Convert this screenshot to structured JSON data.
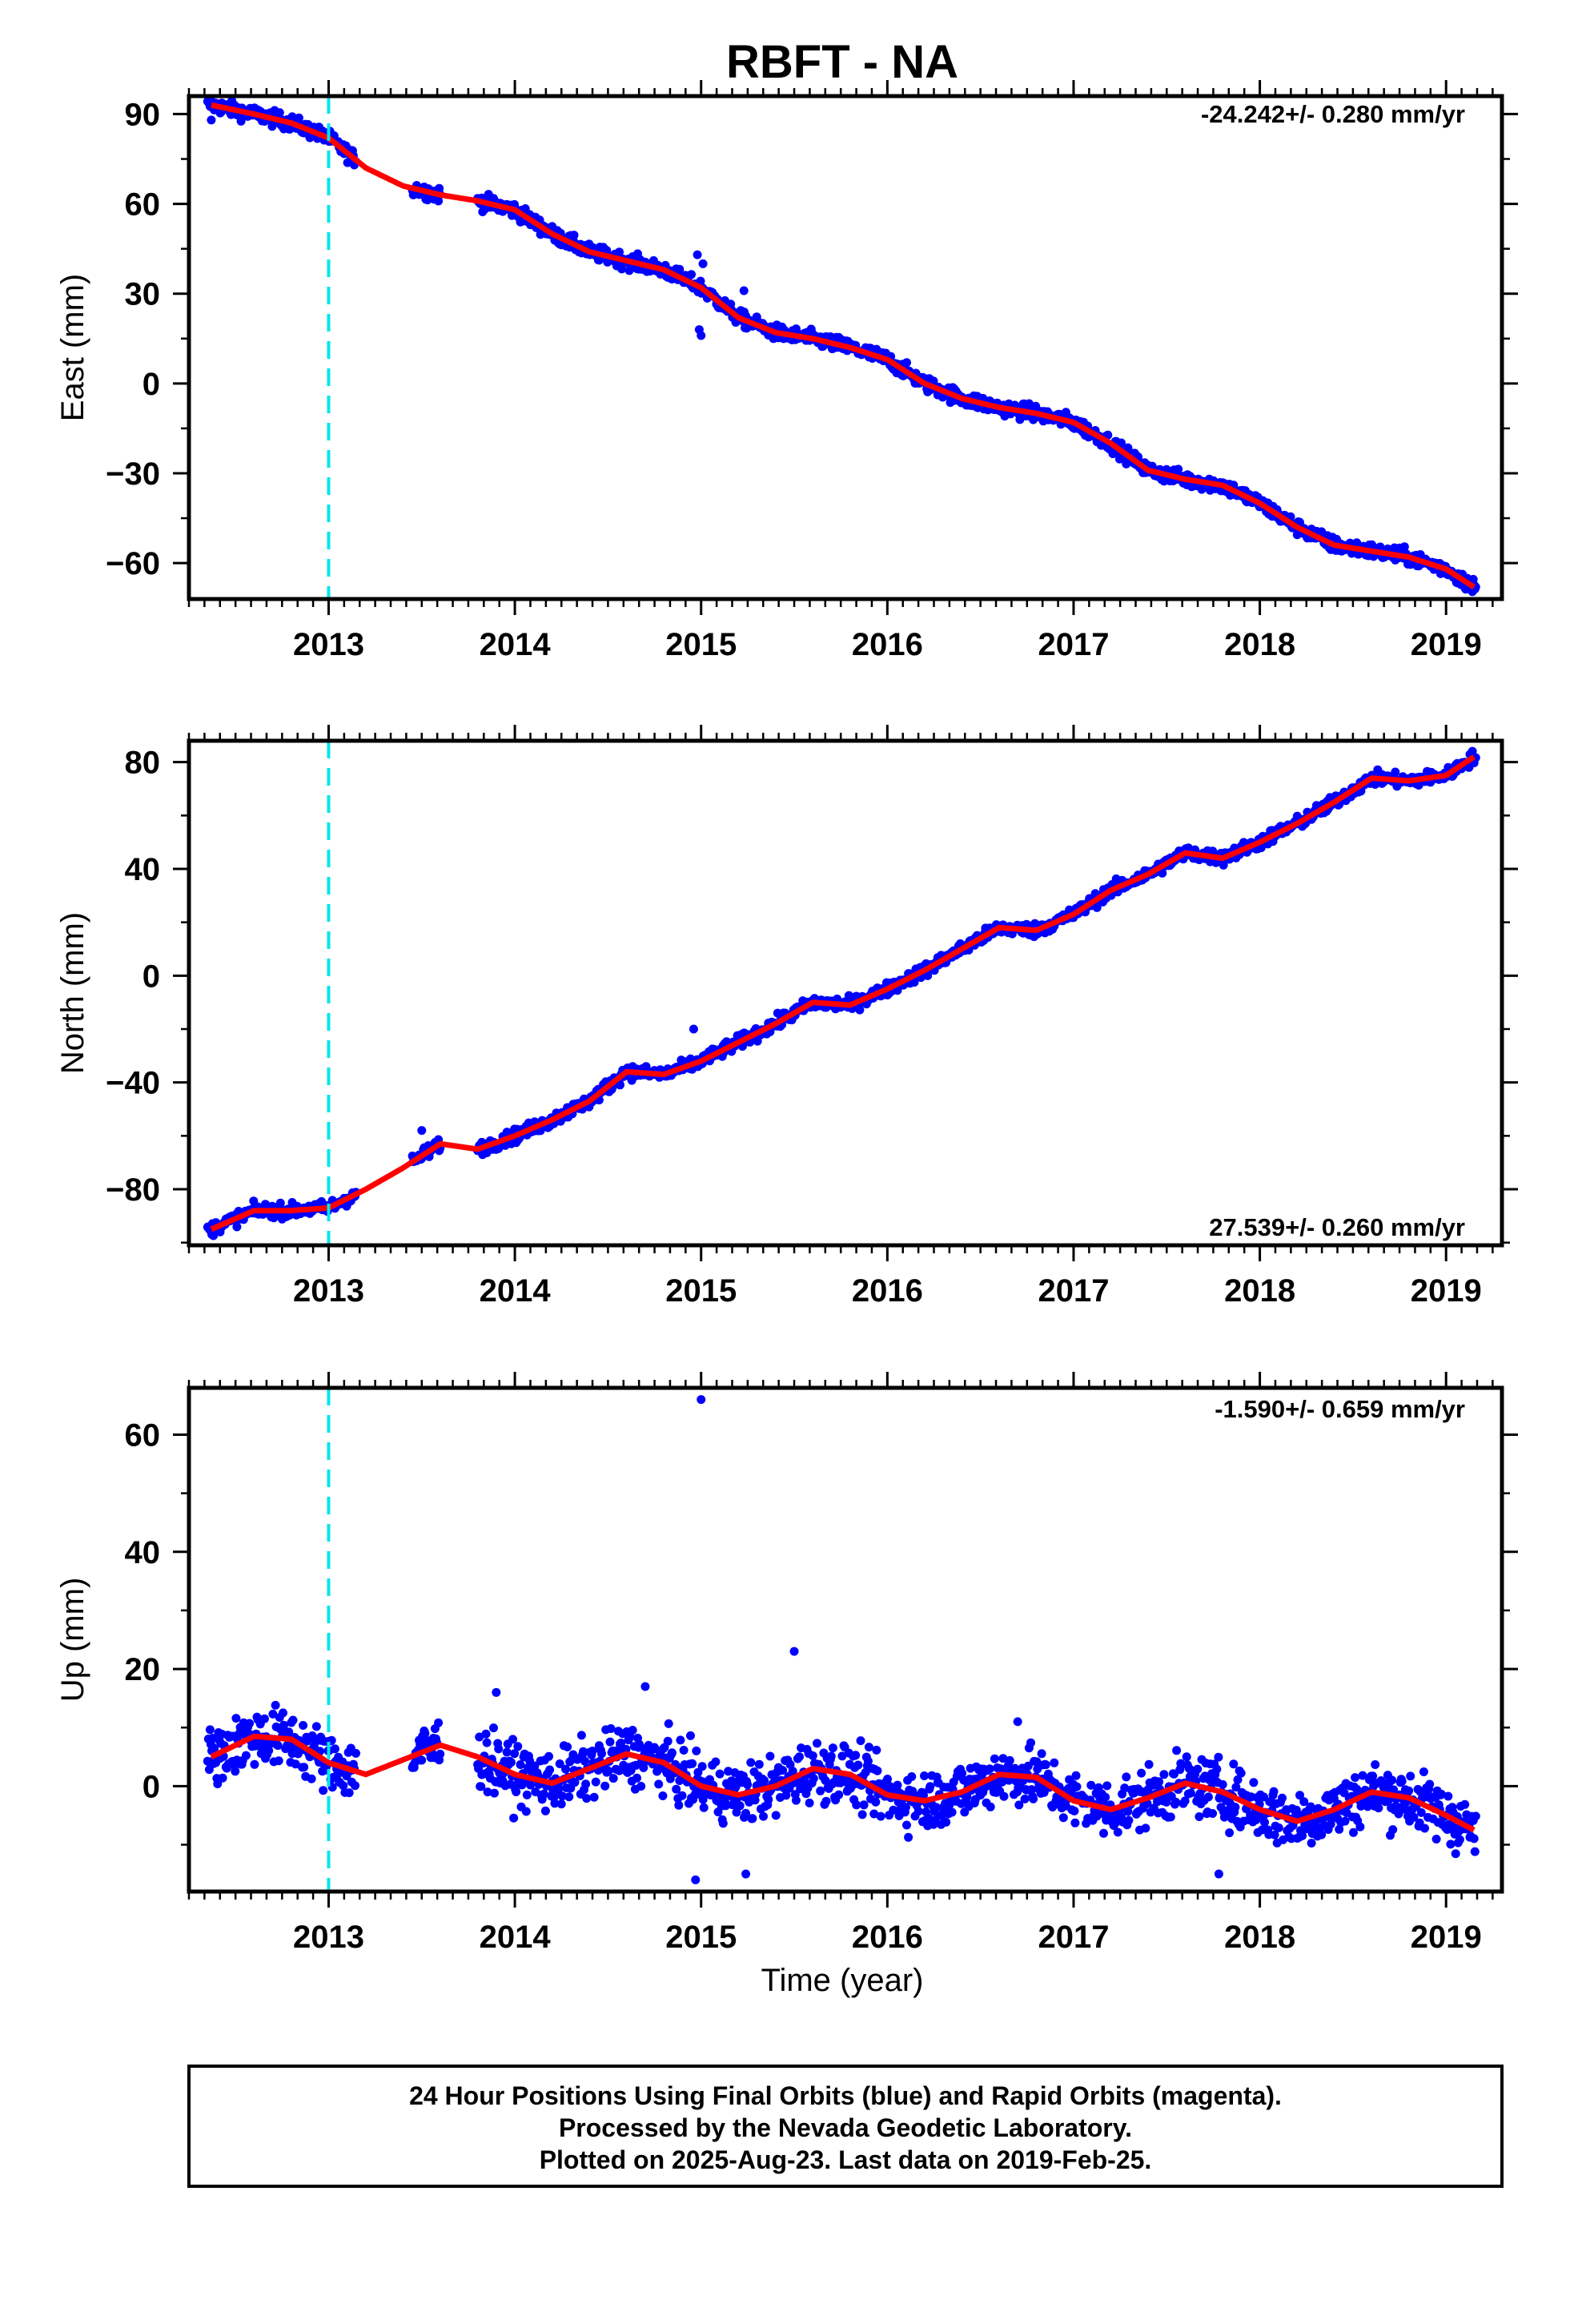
{
  "title": "RBFT - NA",
  "xlabel": "Time (year)",
  "colors": {
    "final_orbits": "#0000ff",
    "model": "#ff0000",
    "equipment_change": "#00e5ee",
    "frame": "#000000"
  },
  "footer": {
    "lines": [
      "24 Hour Positions Using Final Orbits (blue) and Rapid Orbits (magenta).",
      "Processed by the Nevada Geodetic Laboratory.",
      "Plotted on 2025-Aug-23. Last data on 2019-Feb-25."
    ]
  },
  "chart_data": [
    {
      "type": "scatter",
      "ylabel": "East (mm)",
      "rate_label": "-24.242+/- 0.280 mm/yr",
      "xlim": [
        2012.25,
        2019.3
      ],
      "ylim": [
        -72,
        96
      ],
      "x_ticks": [
        2013,
        2014,
        2015,
        2016,
        2017,
        2018,
        2019
      ],
      "y_ticks": [
        90,
        60,
        30,
        0,
        -30,
        -60
      ],
      "y_tick_labels": [
        "90",
        "60",
        "30",
        "0",
        "−30",
        "−60"
      ],
      "equipment_change_x": 2013.0,
      "model_curve": {
        "x": [
          2012.37,
          2012.6,
          2012.8,
          2013.0,
          2013.2,
          2013.4,
          2013.6,
          2013.8,
          2014.0,
          2014.2,
          2014.4,
          2014.6,
          2014.8,
          2015.0,
          2015.2,
          2015.4,
          2015.6,
          2015.8,
          2016.0,
          2016.2,
          2016.4,
          2016.6,
          2016.8,
          2017.0,
          2017.2,
          2017.4,
          2017.6,
          2017.8,
          2018.0,
          2018.2,
          2018.4,
          2018.6,
          2018.8,
          2019.0,
          2019.15
        ],
        "y": [
          93,
          90,
          87,
          82,
          72,
          66,
          63,
          61,
          58,
          50,
          44,
          41,
          38,
          32,
          22,
          17,
          15,
          12,
          8,
          0,
          -5,
          -8,
          -10,
          -13,
          -20,
          -29,
          -32,
          -34,
          -40,
          -48,
          -54,
          -56,
          -58,
          -62,
          -68
        ]
      },
      "scatter": {
        "segments": [
          [
            2012.35,
            2013.15
          ],
          [
            2013.45,
            2013.6
          ],
          [
            2013.8,
            2019.16
          ]
        ],
        "noise_mm": 1.8,
        "outliers": [
          {
            "x": 2012.37,
            "y": 88
          },
          {
            "x": 2014.98,
            "y": 43
          },
          {
            "x": 2014.99,
            "y": 18
          },
          {
            "x": 2015.0,
            "y": 16
          },
          {
            "x": 2015.01,
            "y": 40
          },
          {
            "x": 2015.23,
            "y": 31
          }
        ]
      }
    },
    {
      "type": "scatter",
      "ylabel": "North (mm)",
      "rate_label": "27.539+/- 0.260 mm/yr",
      "xlim": [
        2012.25,
        2019.3
      ],
      "ylim": [
        -101,
        88
      ],
      "x_ticks": [
        2013,
        2014,
        2015,
        2016,
        2017,
        2018,
        2019
      ],
      "y_ticks": [
        80,
        40,
        0,
        -40,
        -80
      ],
      "y_tick_labels": [
        "80",
        "40",
        "0",
        "−40",
        "−80"
      ],
      "equipment_change_x": 2013.0,
      "model_curve": {
        "x": [
          2012.37,
          2012.6,
          2012.8,
          2013.0,
          2013.2,
          2013.4,
          2013.6,
          2013.8,
          2014.0,
          2014.2,
          2014.4,
          2014.6,
          2014.8,
          2015.0,
          2015.2,
          2015.4,
          2015.6,
          2015.8,
          2016.0,
          2016.2,
          2016.4,
          2016.6,
          2016.8,
          2017.0,
          2017.2,
          2017.4,
          2017.6,
          2017.8,
          2018.0,
          2018.2,
          2018.4,
          2018.6,
          2018.8,
          2019.0,
          2019.15
        ],
        "y": [
          -95,
          -88,
          -88,
          -87,
          -80,
          -72,
          -63,
          -65,
          -60,
          -54,
          -47,
          -36,
          -37,
          -32,
          -25,
          -18,
          -10,
          -11,
          -5,
          2,
          10,
          18,
          17,
          23,
          32,
          38,
          46,
          44,
          50,
          57,
          65,
          74,
          73,
          75,
          82
        ]
      },
      "scatter": {
        "segments": [
          [
            2012.35,
            2013.15
          ],
          [
            2013.45,
            2013.6
          ],
          [
            2013.8,
            2019.16
          ]
        ],
        "noise_mm": 1.8,
        "outliers": [
          {
            "x": 2012.36,
            "y": -95
          },
          {
            "x": 2014.96,
            "y": -20
          },
          {
            "x": 2013.5,
            "y": -58
          }
        ]
      }
    },
    {
      "type": "scatter",
      "ylabel": "Up (mm)",
      "rate_label": "-1.590+/- 0.659 mm/yr",
      "xlim": [
        2012.25,
        2019.3
      ],
      "ylim": [
        -18,
        68
      ],
      "x_ticks": [
        2013,
        2014,
        2015,
        2016,
        2017,
        2018,
        2019
      ],
      "y_ticks": [
        60,
        40,
        20,
        0
      ],
      "y_tick_labels": [
        "60",
        "40",
        "20",
        "0"
      ],
      "equipment_change_x": 2013.0,
      "model_curve": {
        "x": [
          2012.37,
          2012.6,
          2012.8,
          2013.0,
          2013.2,
          2013.4,
          2013.6,
          2013.8,
          2014.0,
          2014.2,
          2014.4,
          2014.6,
          2014.8,
          2015.0,
          2015.2,
          2015.4,
          2015.6,
          2015.8,
          2016.0,
          2016.2,
          2016.4,
          2016.6,
          2016.8,
          2017.0,
          2017.2,
          2017.4,
          2017.6,
          2017.8,
          2018.0,
          2018.2,
          2018.4,
          2018.6,
          2018.8,
          2019.0,
          2019.15
        ],
        "y": [
          5,
          8.5,
          8,
          4,
          2,
          4.5,
          7,
          5,
          2,
          0.5,
          3,
          5.5,
          4,
          0,
          -1.5,
          0,
          3,
          2,
          -1.5,
          -2.5,
          -1,
          2,
          1.5,
          -2.5,
          -4,
          -2,
          0.5,
          -1,
          -4,
          -6,
          -4,
          -1,
          -2,
          -5,
          -7.5
        ]
      },
      "scatter": {
        "segments": [
          [
            2012.35,
            2013.15
          ],
          [
            2013.45,
            2013.6
          ],
          [
            2013.8,
            2019.16
          ]
        ],
        "noise_mm": 3.6,
        "outliers": [
          {
            "x": 2015.0,
            "y": 66
          },
          {
            "x": 2015.5,
            "y": 23
          },
          {
            "x": 2014.97,
            "y": -16
          },
          {
            "x": 2015.24,
            "y": -15
          },
          {
            "x": 2017.78,
            "y": -15
          },
          {
            "x": 2016.7,
            "y": 11
          },
          {
            "x": 2014.7,
            "y": 17
          },
          {
            "x": 2013.9,
            "y": 16
          }
        ]
      }
    }
  ]
}
